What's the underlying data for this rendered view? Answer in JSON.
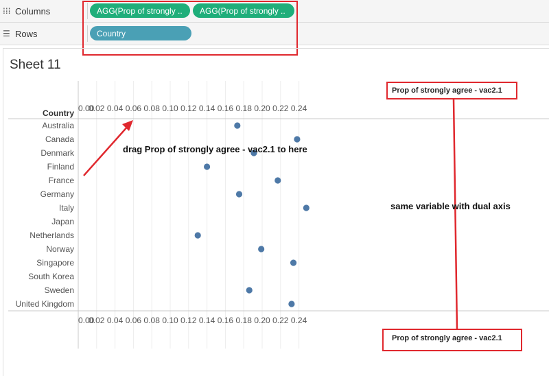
{
  "shelves": {
    "columns": {
      "label": "Columns",
      "icon": "columns-icon",
      "pills": [
        "AGG(Prop of strongly ..",
        "AGG(Prop of strongly .."
      ]
    },
    "rows": {
      "label": "Rows",
      "icon": "rows-icon",
      "pills": [
        "Country"
      ]
    }
  },
  "sheet": {
    "title": "Sheet 11",
    "row_header": "Country"
  },
  "axis": {
    "title_top": "Prop of strongly agree - vac2.1",
    "title_bottom": "Prop of strongly agree - vac2.1",
    "ticks": [
      0.0,
      0.02,
      0.04,
      0.06,
      0.08,
      0.1,
      0.12,
      0.14,
      0.16,
      0.18,
      0.2,
      0.22,
      0.24
    ],
    "tick_labels": [
      "0.00",
      "0.02",
      "0.04",
      "0.06",
      "0.08",
      "0.10",
      "0.12",
      "0.14",
      "0.16",
      "0.18",
      "0.20",
      "0.22",
      "0.24"
    ]
  },
  "chart_data": {
    "type": "scatter",
    "categories": [
      "Australia",
      "Canada",
      "Denmark",
      "Finland",
      "France",
      "Germany",
      "Italy",
      "Japan",
      "Netherlands",
      "Norway",
      "Singapore",
      "South Korea",
      "Sweden",
      "United Kingdom"
    ],
    "values": [
      0.173,
      0.238,
      0.191,
      0.14,
      0.217,
      0.175,
      0.248,
      null,
      0.13,
      0.199,
      0.234,
      null,
      0.186,
      0.232
    ],
    "xlabel": "Prop of strongly agree - vac2.1",
    "ylabel": "Country",
    "xlim": [
      0.0,
      0.25
    ],
    "point_color": "#4e79a7"
  },
  "annotations": {
    "drag_hint": "drag Prop of strongly agree - vac2.1 to here",
    "dual_axis": "same variable with dual axis"
  },
  "colors": {
    "highlight_red": "#e0282e",
    "pill_green": "#1fae7a",
    "pill_blue": "#4aa0b5"
  }
}
